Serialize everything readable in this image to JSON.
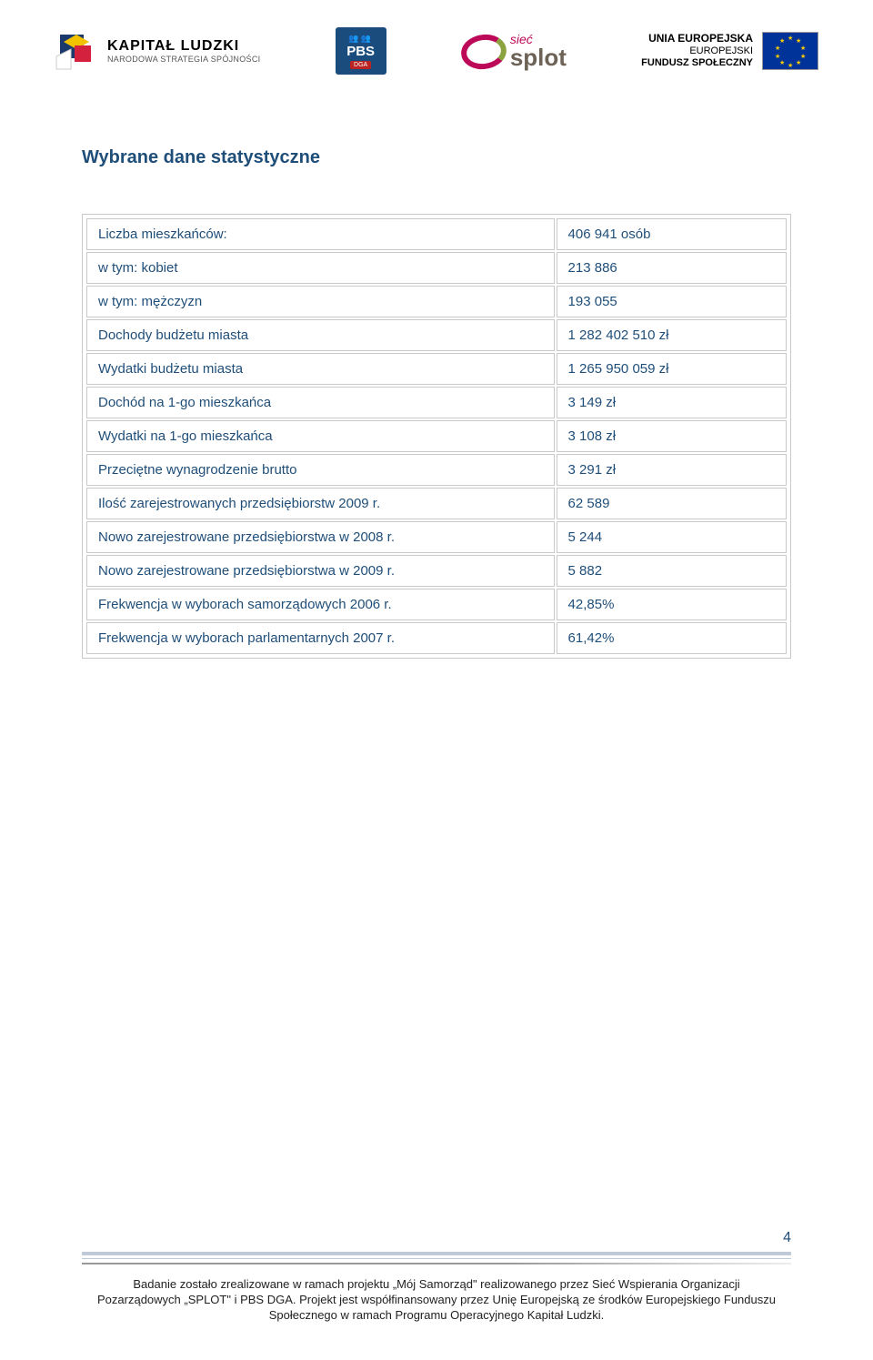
{
  "header": {
    "kl_title": "KAPITAŁ LUDZKI",
    "kl_sub": "NARODOWA STRATEGIA SPÓJNOŚCI",
    "pbs_text": "PBS",
    "pbs_dga": "DGA",
    "splot_siec": "sieć",
    "splot_main": "splot",
    "eu_line1": "UNIA EUROPEJSKA",
    "eu_line2": "EUROPEJSKI",
    "eu_line3": "FUNDUSZ SPOŁECZNY"
  },
  "section_title": "Wybrane dane statystyczne",
  "table": {
    "rows": [
      {
        "label": "Liczba mieszkańców:",
        "value": "406 941 osób"
      },
      {
        "label": "w tym: kobiet",
        "value": "213 886"
      },
      {
        "label": "w tym: mężczyzn",
        "value": "193 055"
      },
      {
        "label": "Dochody budżetu miasta",
        "value": "1 282 402 510 zł"
      },
      {
        "label": "Wydatki budżetu miasta",
        "value": "1 265 950 059 zł"
      },
      {
        "label": "Dochód na 1-go mieszkańca",
        "value": "3 149 zł"
      },
      {
        "label": "Wydatki na 1-go mieszkańca",
        "value": "3 108 zł"
      },
      {
        "label": "Przeciętne wynagrodzenie brutto",
        "value": "3 291 zł"
      },
      {
        "label": "Ilość zarejestrowanych przedsiębiorstw 2009 r.",
        "value": "62 589"
      },
      {
        "label": "Nowo zarejestrowane przedsiębiorstwa w 2008 r.",
        "value": "5 244"
      },
      {
        "label": "Nowo zarejestrowane przedsiębiorstwa w 2009 r.",
        "value": "5 882"
      },
      {
        "label": "Frekwencja w wyborach samorządowych 2006 r.",
        "value": "42,85%"
      },
      {
        "label": "Frekwencja w wyborach parlamentarnych 2007 r.",
        "value": "61,42%"
      }
    ],
    "border_color": "#c9c9c9",
    "text_color": "#1f4e79",
    "font_size": 15
  },
  "footer": {
    "page_number": "4",
    "text": "Badanie zostało zrealizowane w ramach projektu „Mój Samorząd\" realizowanego przez Sieć Wspierania Organizacji Pozarządowych „SPLOT\" i PBS DGA. Projekt jest współfinansowany przez Unię Europejską ze środków Europejskiego Funduszu Społecznego w ramach Programu Operacyjnego Kapitał Ludzki."
  },
  "colors": {
    "heading": "#1f4e79",
    "table_border": "#c9c9c9",
    "eu_blue": "#003399",
    "eu_gold": "#ffcc00",
    "splot_pink": "#bd0a58",
    "splot_green": "#8aa33e",
    "pbs_blue": "#1a4d7d"
  }
}
